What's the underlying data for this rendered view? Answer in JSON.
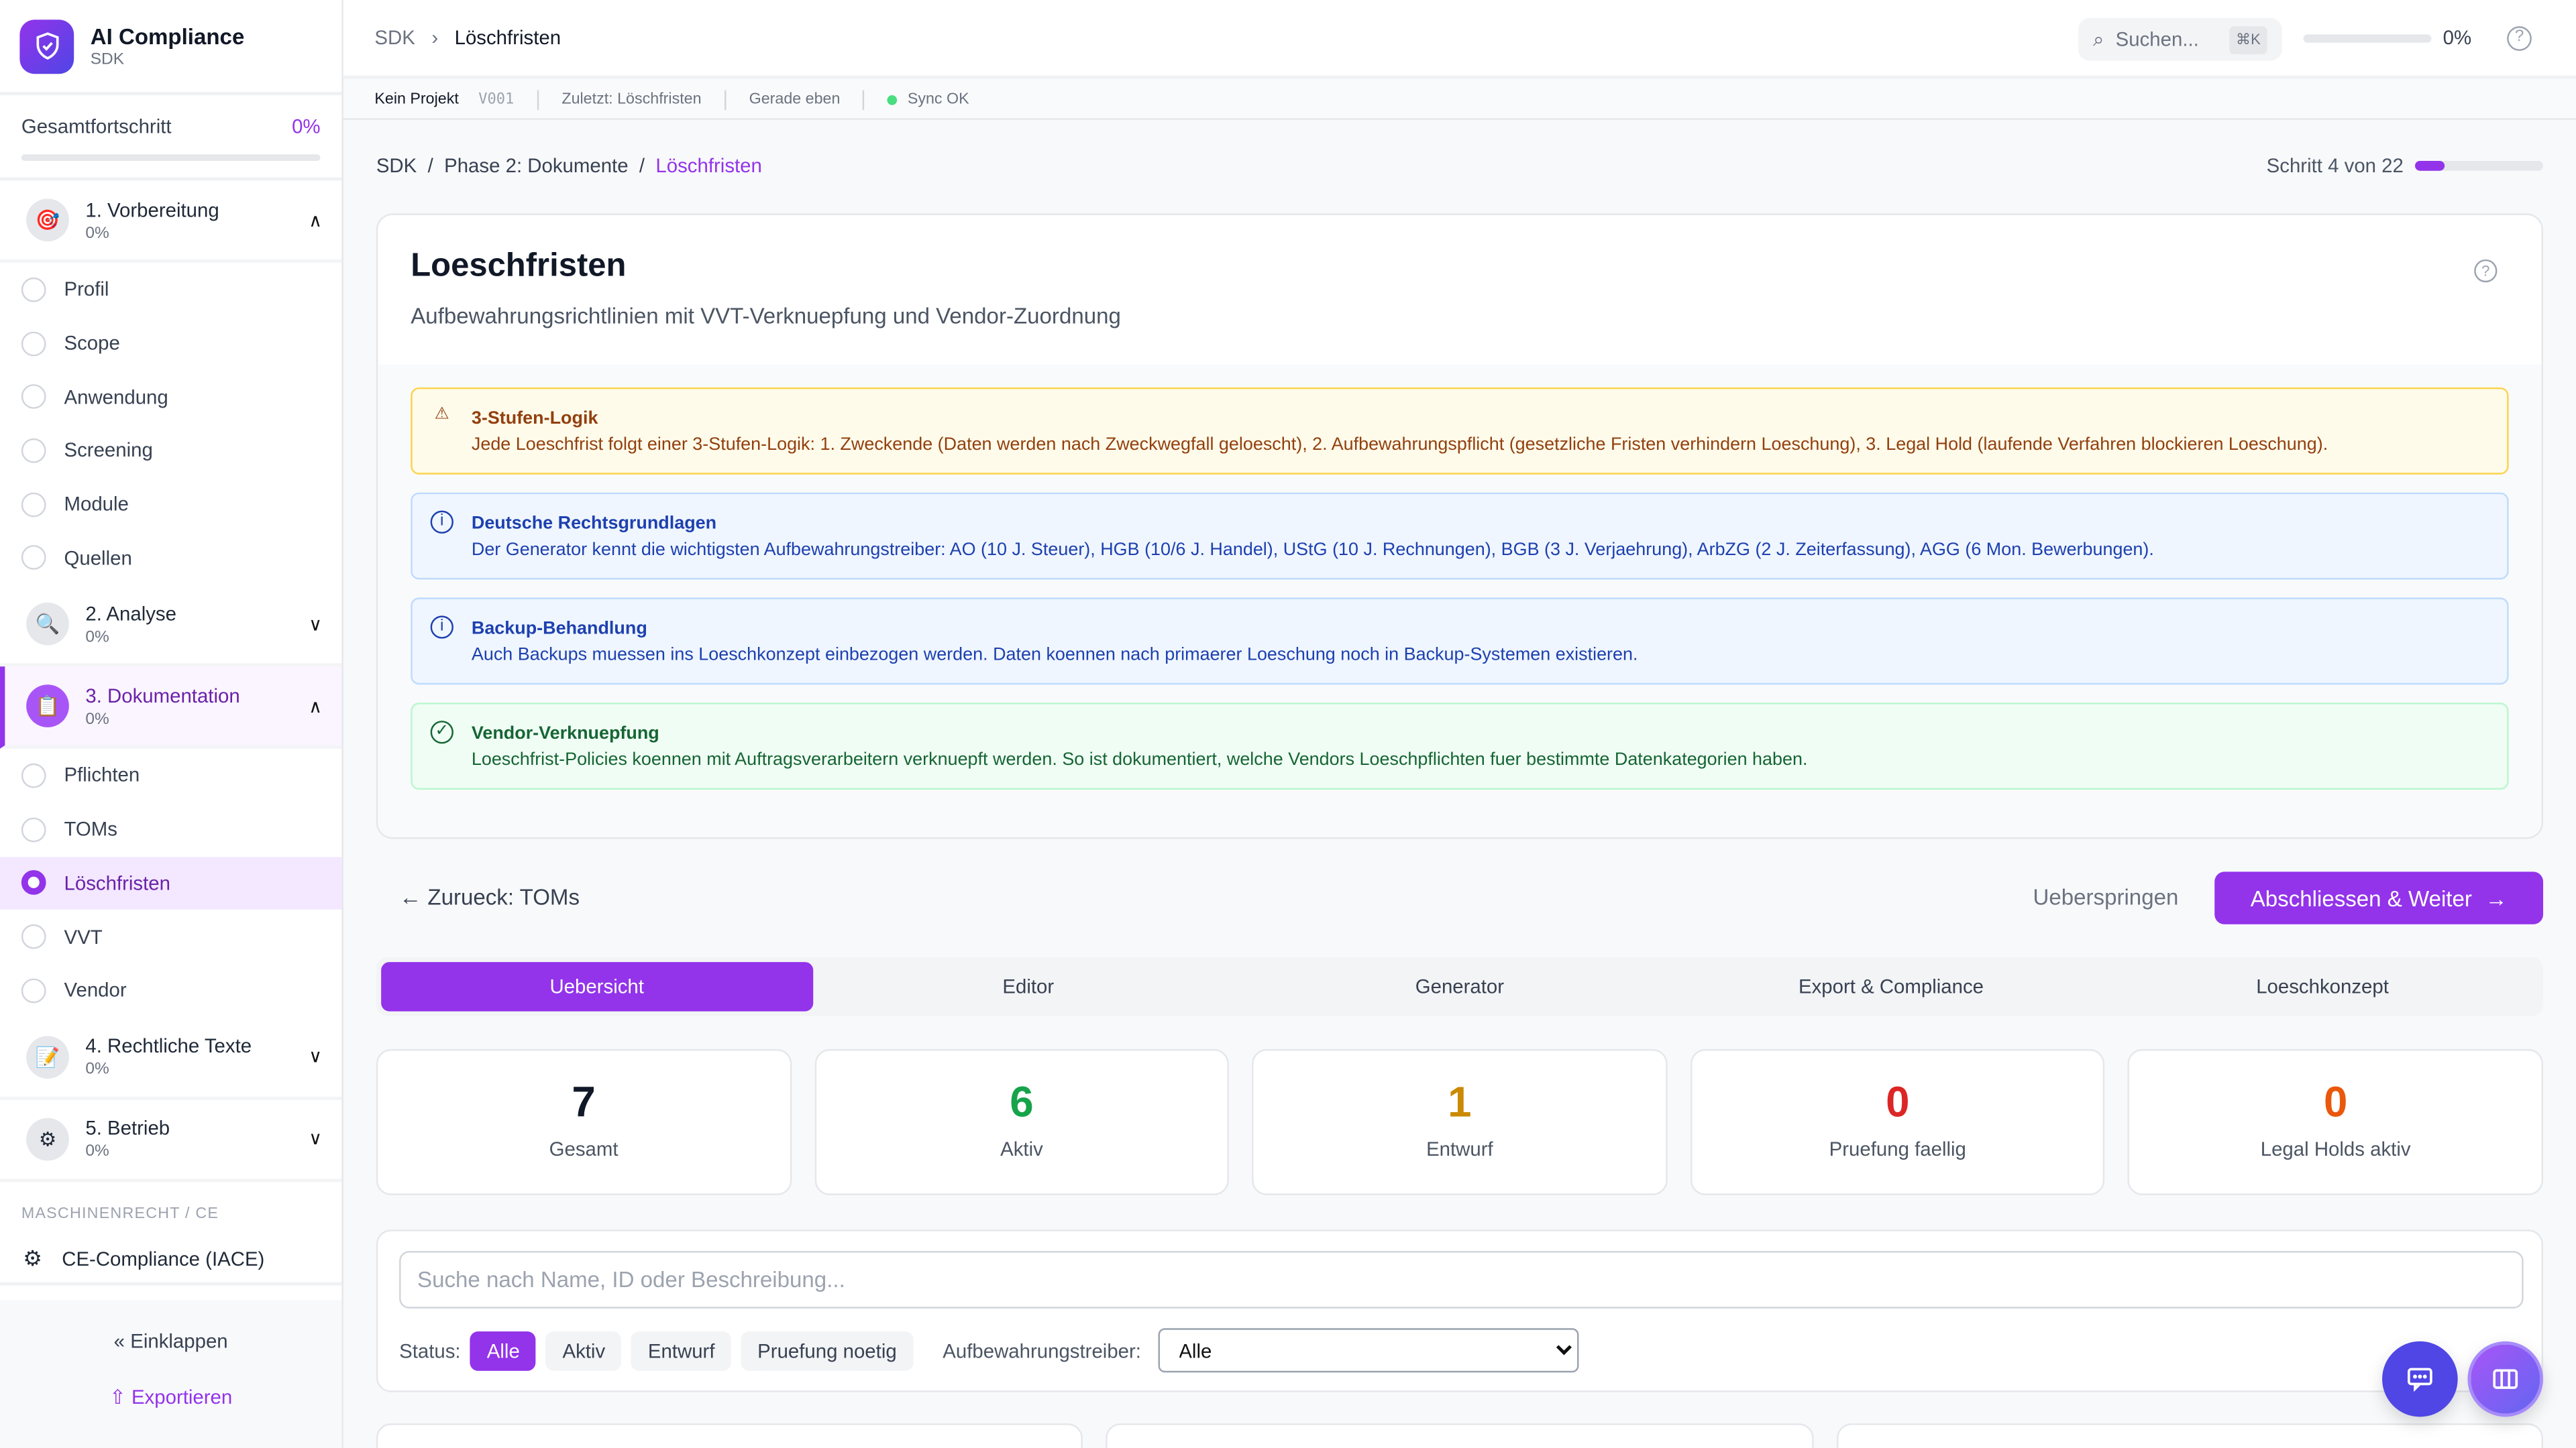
{
  "brand": {
    "title": "AI Compliance",
    "subtitle": "SDK"
  },
  "progress": {
    "label": "Gesamtfortschritt",
    "value": "0%",
    "fraction": 0
  },
  "sidebar": {
    "sections": [
      {
        "label": "1. Vorbereitung",
        "pct": "0%",
        "icon": "target-icon",
        "expanded": true,
        "items": [
          "Profil",
          "Scope",
          "Anwendung",
          "Screening",
          "Module",
          "Quellen"
        ]
      },
      {
        "label": "2. Analyse",
        "pct": "0%",
        "icon": "magnifier-icon",
        "expanded": false
      },
      {
        "label": "3. Dokumentation",
        "pct": "0%",
        "icon": "clipboard-icon",
        "expanded": true,
        "active": true,
        "items": [
          "Pflichten",
          "TOMs",
          "Löschfristen",
          "VVT",
          "Vendor"
        ],
        "active_item": "Löschfristen"
      },
      {
        "label": "4. Rechtliche Texte",
        "pct": "0%",
        "icon": "memo-icon",
        "expanded": false
      },
      {
        "label": "5. Betrieb",
        "pct": "0%",
        "icon": "gear-icon",
        "expanded": false
      }
    ],
    "category": "MASCHINENRECHT / CE",
    "ce_item": "CE-Compliance (IACE)",
    "collapse": "Einklappen",
    "export": "Exportieren"
  },
  "header": {
    "crumb_root": "SDK",
    "crumb_current": "Löschfristen",
    "search_placeholder": "Suchen...",
    "shortcut": "⌘K",
    "progress": "0%"
  },
  "statusbar": {
    "project": "Kein Projekt",
    "version": "V001",
    "last": "Zuletzt: Löschfristen",
    "time": "Gerade eben",
    "sync": "Sync OK"
  },
  "breadcrumb": {
    "root": "SDK",
    "phase": "Phase 2: Dokumente",
    "current": "Löschfristen"
  },
  "step": {
    "label": "Schritt 4 von 22",
    "current": 4,
    "total": 22
  },
  "page": {
    "title": "Loeschfristen",
    "description": "Aufbewahrungsrichtlinien mit VVT-Verknuepfung und Vendor-Zuordnung"
  },
  "alerts": [
    {
      "type": "warning",
      "title": "3-Stufen-Logik",
      "text": "Jede Loeschfrist folgt einer 3-Stufen-Logik: 1. Zweckende (Daten werden nach Zweckwegfall geloescht), 2. Aufbewahrungspflicht (gesetzliche Fristen verhindern Loeschung), 3. Legal Hold (laufende Verfahren blockieren Loeschung)."
    },
    {
      "type": "info",
      "title": "Deutsche Rechtsgrundlagen",
      "text": "Der Generator kennt die wichtigsten Aufbewahrungstreiber: AO (10 J. Steuer), HGB (10/6 J. Handel), UStG (10 J. Rechnungen), BGB (3 J. Verjaehrung), ArbZG (2 J. Zeiterfassung), AGG (6 Mon. Bewerbungen)."
    },
    {
      "type": "info",
      "title": "Backup-Behandlung",
      "text": "Auch Backups muessen ins Loeschkonzept einbezogen werden. Daten koennen nach primaerer Loeschung noch in Backup-Systemen existieren."
    },
    {
      "type": "success",
      "title": "Vendor-Verknuepfung",
      "text": "Loeschfrist-Policies koennen mit Auftragsverarbeitern verknuepft werden. So ist dokumentiert, welche Vendors Loeschpflichten fuer bestimmte Datenkategorien haben."
    }
  ],
  "nav": {
    "back": "Zurueck: TOMs",
    "skip": "Ueberspringen",
    "next": "Abschliessen & Weiter"
  },
  "tabs": [
    "Uebersicht",
    "Editor",
    "Generator",
    "Export & Compliance",
    "Loeschkonzept"
  ],
  "stats": [
    {
      "value": "7",
      "label": "Gesamt",
      "color": "#111827"
    },
    {
      "value": "6",
      "label": "Aktiv",
      "color": "#16a34a"
    },
    {
      "value": "1",
      "label": "Entwurf",
      "color": "#ca8a04"
    },
    {
      "value": "0",
      "label": "Pruefung faellig",
      "color": "#dc2626"
    },
    {
      "value": "0",
      "label": "Legal Holds aktiv",
      "color": "#ea580c"
    }
  ],
  "filter": {
    "search_placeholder": "Suche nach Name, ID oder Beschreibung...",
    "status_label": "Status:",
    "chips": [
      "Alle",
      "Aktiv",
      "Entwurf",
      "Pruefung noetig"
    ],
    "driver_label": "Aufbewahrungstreiber:",
    "driver_value": "Alle"
  },
  "colors": {
    "accent": "#9333ea",
    "chat": "#4f46e5"
  }
}
